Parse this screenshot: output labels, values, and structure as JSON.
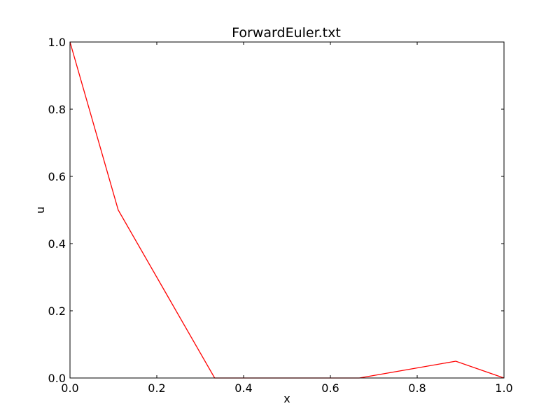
{
  "chart_data": {
    "type": "line",
    "title": "ForwardEuler.txt",
    "xlabel": "x",
    "ylabel": "u",
    "xlim": [
      0.0,
      1.0
    ],
    "ylim": [
      0.0,
      1.0
    ],
    "xticks": [
      0.0,
      0.2,
      0.4,
      0.6,
      0.8,
      1.0
    ],
    "yticks": [
      0.0,
      0.2,
      0.4,
      0.6,
      0.8,
      1.0
    ],
    "xtick_labels": [
      "0.0",
      "0.2",
      "0.4",
      "0.6",
      "0.8",
      "1.0"
    ],
    "ytick_labels": [
      "0.0",
      "0.2",
      "0.4",
      "0.6",
      "0.8",
      "1.0"
    ],
    "grid": false,
    "legend": "none",
    "series": [
      {
        "color": "#ff0000",
        "x": [
          0.0,
          0.1111,
          0.2222,
          0.3333,
          0.4444,
          0.5556,
          0.6667,
          0.7778,
          0.8889,
          1.0
        ],
        "y": [
          1.0,
          0.5,
          0.25,
          0.0,
          0.0,
          0.0,
          0.0,
          0.025,
          0.05,
          0.0
        ]
      }
    ]
  }
}
